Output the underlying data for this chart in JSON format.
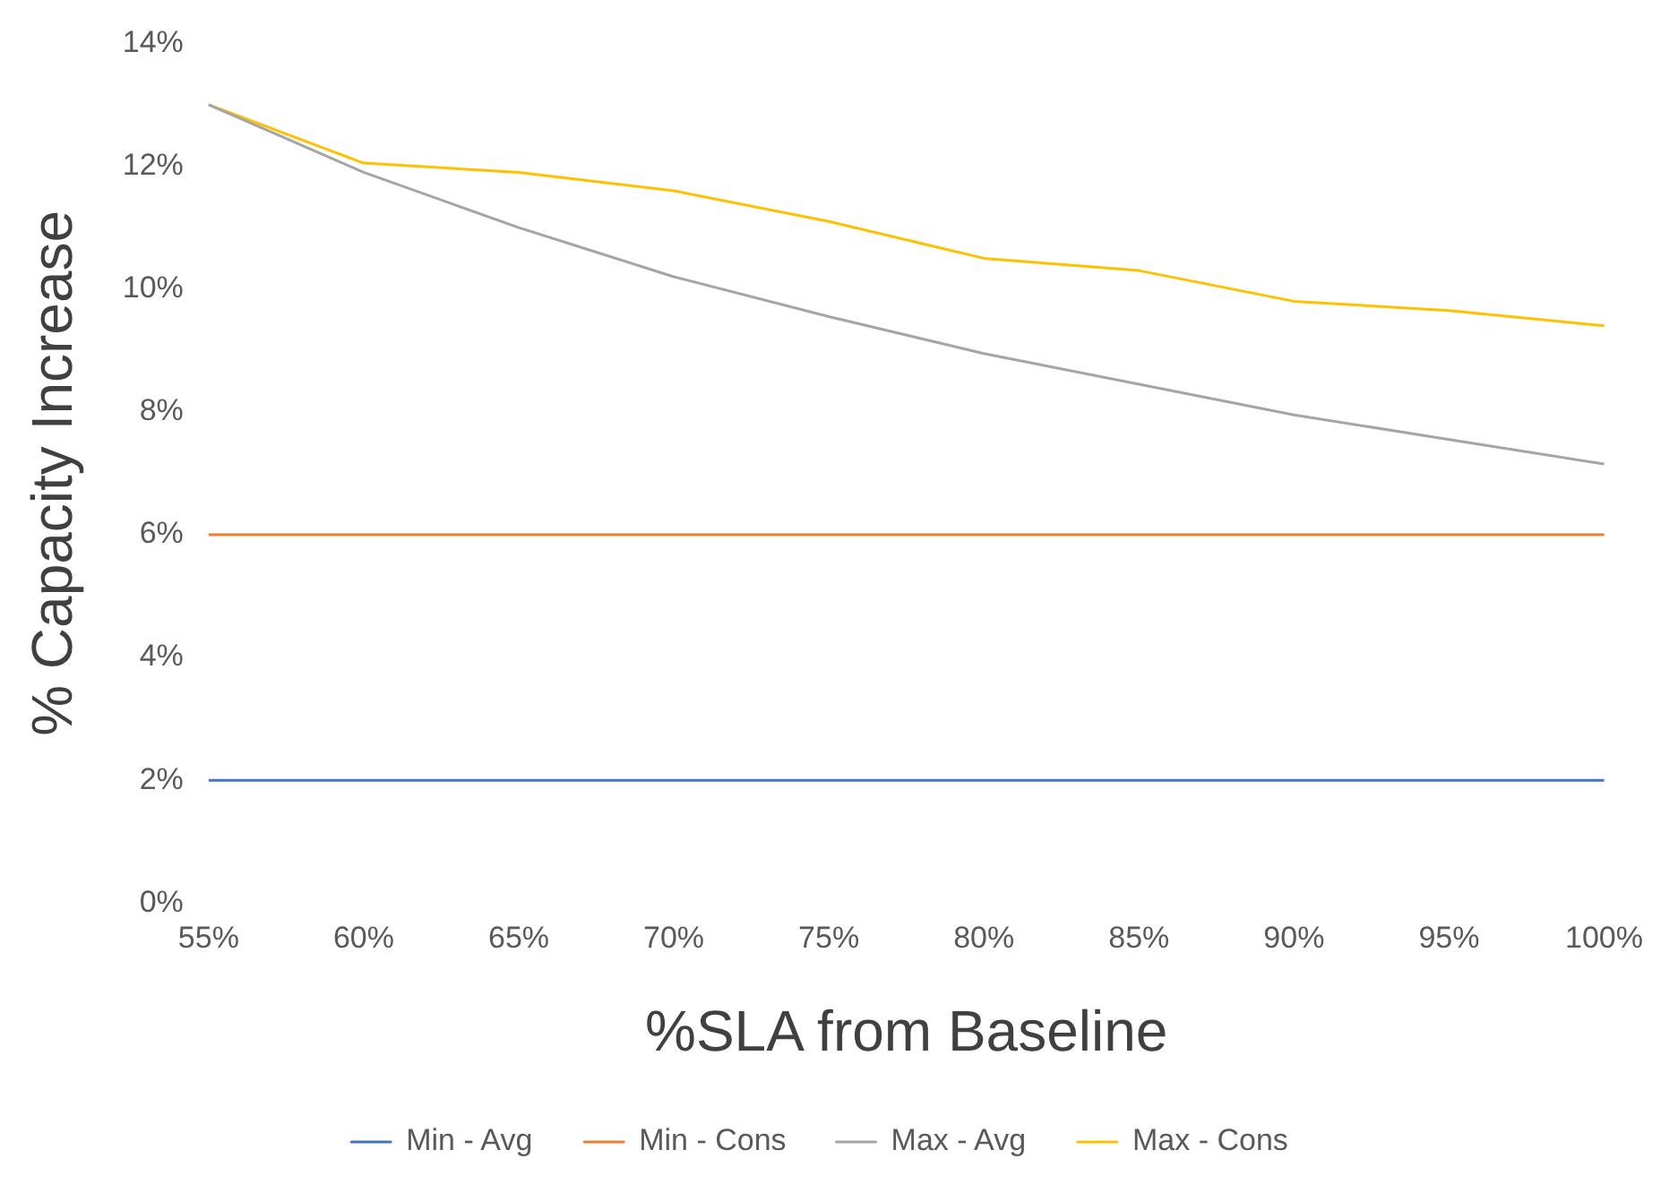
{
  "chart_data": {
    "type": "line",
    "xlabel": "%SLA from Baseline",
    "ylabel": "% Capacity Increase",
    "categories": [
      "55%",
      "60%",
      "65%",
      "70%",
      "75%",
      "80%",
      "85%",
      "90%",
      "95%",
      "100%"
    ],
    "series": [
      {
        "name": "Min - Avg",
        "color": "#4472c4",
        "values": [
          2,
          2,
          2,
          2,
          2,
          2,
          2,
          2,
          2,
          2
        ]
      },
      {
        "name": "Min - Cons",
        "color": "#ed7d31",
        "values": [
          6,
          6,
          6,
          6,
          6,
          6,
          6,
          6,
          6,
          6
        ]
      },
      {
        "name": "Max - Avg",
        "color": "#a5a5a5",
        "values": [
          13,
          11.9,
          11,
          10.2,
          9.55,
          8.95,
          8.45,
          7.95,
          7.55,
          7.15
        ]
      },
      {
        "name": "Max - Cons",
        "color": "#ffc000",
        "values": [
          13,
          12.05,
          11.9,
          11.6,
          11.1,
          10.5,
          10.3,
          9.8,
          9.65,
          9.4
        ]
      }
    ],
    "ylim": [
      0,
      14
    ],
    "yticks": [
      {
        "value": 0,
        "label": "0%"
      },
      {
        "value": 2,
        "label": "2%"
      },
      {
        "value": 4,
        "label": "4%"
      },
      {
        "value": 6,
        "label": "6%"
      },
      {
        "value": 8,
        "label": "8%"
      },
      {
        "value": 10,
        "label": "10%"
      },
      {
        "value": 12,
        "label": "12%"
      },
      {
        "value": 14,
        "label": "14%"
      }
    ],
    "grid": false,
    "legend": "bottom",
    "marker": "none",
    "line_style": "solid"
  }
}
